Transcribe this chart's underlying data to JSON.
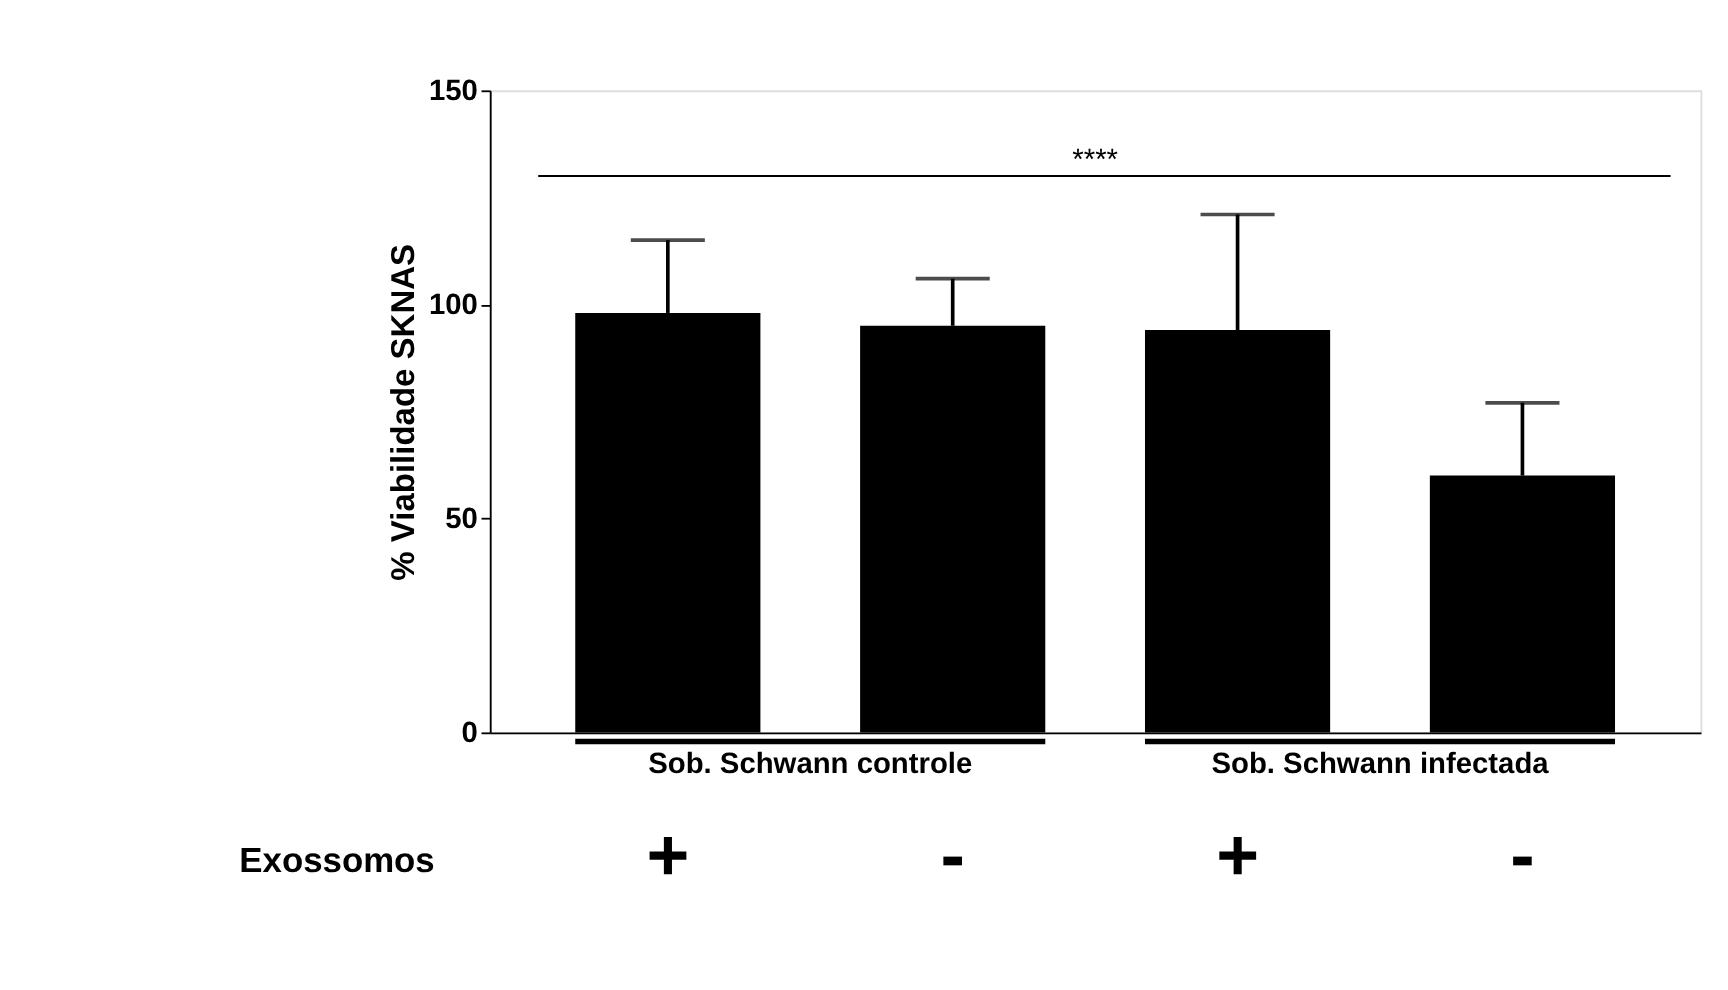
{
  "chart_data": {
    "type": "bar",
    "categories": [
      "+",
      "-",
      "+",
      "-"
    ],
    "values": [
      98,
      95,
      94,
      60
    ],
    "color": "#000000",
    "errors": [
      [
        98,
        115
      ],
      [
        95,
        106
      ],
      [
        94,
        121
      ],
      [
        60,
        77
      ]
    ],
    "ylabel": "% Viabilidade SKNAS",
    "xlabel": "Exossomos",
    "ylim": [
      0,
      150
    ],
    "yticks": [
      0,
      50,
      100,
      150
    ],
    "grid": false,
    "ref_lines": [
      {
        "axis": "y",
        "value": 130,
        "label": "****"
      }
    ],
    "annotations": [
      "Sob. Schwann controle",
      "Sob. Schwann infectada"
    ]
  }
}
